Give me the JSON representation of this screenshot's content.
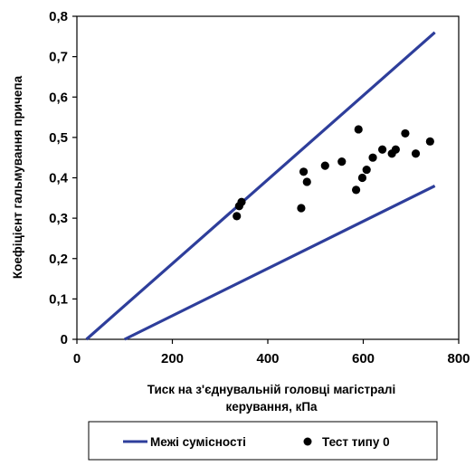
{
  "chart_data": {
    "type": "scatter",
    "xlabel": [
      "Тиск на з'єднувальній головці магістралі",
      "керування, кПа"
    ],
    "ylabel": "Коефіцієнт   гальмування   причепа",
    "xlim": [
      0,
      800
    ],
    "ylim": [
      0,
      0.8
    ],
    "x_ticks": [
      0,
      200,
      400,
      600,
      800
    ],
    "x_tick_labels": [
      "0",
      "200",
      "400",
      "600",
      "800"
    ],
    "y_ticks": [
      0,
      0.1,
      0.2,
      0.3,
      0.4,
      0.5,
      0.6,
      0.7,
      0.8
    ],
    "y_tick_labels": [
      "0",
      "0,1",
      "0,2",
      "0,3",
      "0,4",
      "0,5",
      "0,6",
      "0,7",
      "0,8"
    ],
    "grid": false,
    "legend_position": "bottom",
    "colors": {
      "limit_line": "#2E3E9B",
      "points": "#000000"
    },
    "series": [
      {
        "name": "Межі сумісності",
        "kind": "line",
        "segments": [
          [
            [
              20,
              0
            ],
            [
              750,
              0.76
            ]
          ],
          [
            [
              100,
              0
            ],
            [
              750,
              0.38
            ]
          ]
        ]
      },
      {
        "name": "Тест типу 0",
        "kind": "scatter",
        "points": [
          [
            335,
            0.305
          ],
          [
            340,
            0.33
          ],
          [
            345,
            0.34
          ],
          [
            470,
            0.325
          ],
          [
            475,
            0.415
          ],
          [
            482,
            0.39
          ],
          [
            520,
            0.43
          ],
          [
            555,
            0.44
          ],
          [
            585,
            0.37
          ],
          [
            590,
            0.52
          ],
          [
            598,
            0.4
          ],
          [
            607,
            0.42
          ],
          [
            620,
            0.45
          ],
          [
            640,
            0.47
          ],
          [
            660,
            0.46
          ],
          [
            668,
            0.47
          ],
          [
            688,
            0.51
          ],
          [
            710,
            0.46
          ],
          [
            740,
            0.49
          ]
        ]
      }
    ]
  }
}
